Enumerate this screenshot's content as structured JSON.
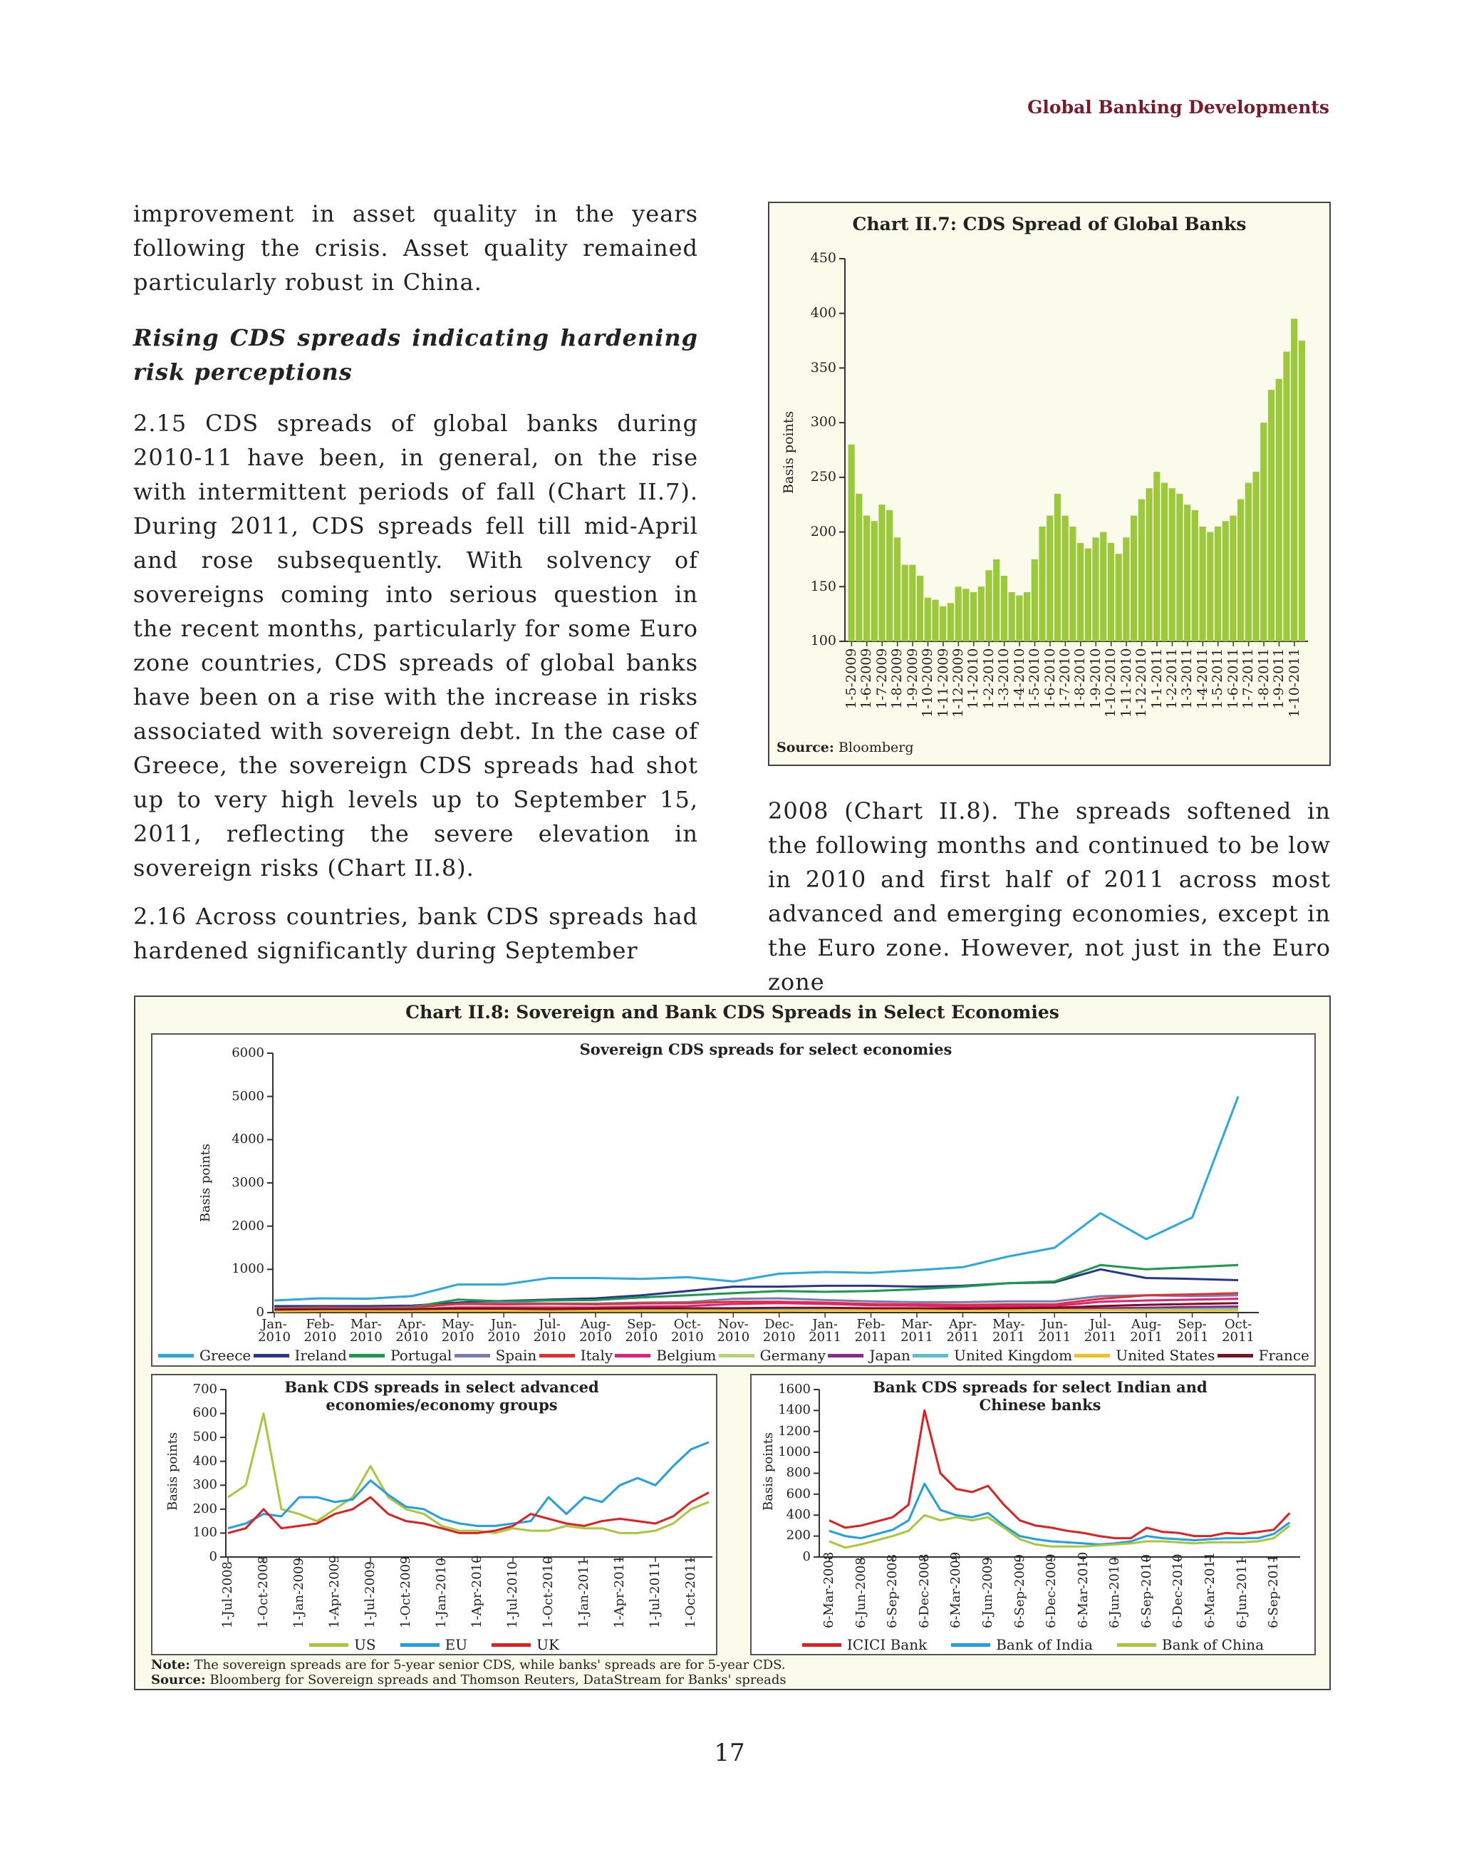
{
  "header": {
    "running_title": "Global Banking Developments"
  },
  "left_column": {
    "intro": "improvement in asset quality in the years following the crisis. Asset quality remained particularly robust in China.",
    "heading": "Rising CDS spreads indicating hardening risk perceptions",
    "paragraphs": [
      "2.15 CDS spreads of global banks during 2010-11 have been, in general, on the rise with intermittent periods of fall (Chart II.7). During 2011, CDS spreads fell till mid-April and rose subsequently. With solvency of sovereigns coming into serious question in the recent months, particularly for some Euro zone countries, CDS spreads of global banks have been on a rise with the increase in risks associated with sovereign debt. In the case of Greece, the sovereign CDS spreads had shot up to very high levels up to September 15, 2011, reflecting the severe elevation in sovereign risks (Chart II.8).",
      "2.16 Across countries, bank CDS spreads had hardened significantly during September"
    ]
  },
  "right_column": {
    "text": "2008 (Chart II.8). The spreads softened in the following months and continued to be low in 2010 and first half of 2011 across most advanced and emerging economies, except in the Euro zone. However, not just in the Euro zone"
  },
  "figure_ii8": {
    "title": "Chart II.8: Sovereign and Bank CDS Spreads in Select Economies",
    "note_label": "Note:",
    "note": "The sovereign spreads are for 5-year senior CDS, while banks' spreads are for 5-year CDS.",
    "source_label": "Source:",
    "source": "Bloomberg for Sovereign spreads and Thomson Reuters, DataStream for Banks' spreads"
  },
  "page_number": "17",
  "chart_data": [
    {
      "type": "bar",
      "title": "Chart II.7: CDS Spread of Global Banks",
      "y_label": "Basis points",
      "source_label": "Source:",
      "source": "Bloomberg",
      "color": "#9cc83c",
      "categories": [
        "1-5-2009",
        null,
        "1-6-2009",
        null,
        "1-7-2009",
        null,
        "1-8-2009",
        null,
        "1-9-2009",
        null,
        "1-10-2009",
        null,
        "1-11-2009",
        null,
        "1-12-2009",
        null,
        "1-1-2010",
        null,
        "1-2-2010",
        null,
        "1-3-2010",
        null,
        "1-4-2010",
        null,
        "1-5-2010",
        null,
        "1-6-2010",
        null,
        "1-7-2010",
        null,
        "1-8-2010",
        null,
        "1-9-2010",
        null,
        "1-10-2010",
        null,
        "1-11-2010",
        null,
        "1-12-2010",
        null,
        "1-1-2011",
        null,
        "1-2-2011",
        null,
        "1-3-2011",
        null,
        "1-4-2011",
        null,
        "1-5-2011",
        null,
        "1-6-2011",
        null,
        "1-7-2011",
        null,
        "1-8-2011",
        null,
        "1-9-2011",
        null,
        "1-10-2011",
        null
      ],
      "values": [
        280,
        235,
        215,
        210,
        225,
        220,
        195,
        170,
        170,
        160,
        140,
        138,
        132,
        135,
        150,
        148,
        145,
        150,
        165,
        175,
        160,
        145,
        142,
        145,
        175,
        205,
        215,
        235,
        215,
        205,
        190,
        185,
        195,
        200,
        190,
        180,
        195,
        215,
        230,
        240,
        255,
        245,
        240,
        235,
        225,
        220,
        205,
        200,
        205,
        210,
        215,
        230,
        245,
        255,
        300,
        330,
        340,
        365,
        395,
        375
      ],
      "ylim": [
        100,
        450
      ],
      "yticks": [
        100,
        150,
        200,
        250,
        300,
        350,
        400,
        450
      ]
    },
    {
      "type": "line",
      "subtitle": "Sovereign CDS spreads for select economies",
      "y_label": "Basis points",
      "categories": [
        "Jan-2010",
        "Feb-2010",
        "Mar-2010",
        "Apr-2010",
        "May-2010",
        "Jun-2010",
        "Jul-2010",
        "Aug-2010",
        "Sep-2010",
        "Oct-2010",
        "Nov-2010",
        "Dec-2010",
        "Jan-2011",
        "Feb-2011",
        "Mar-2011",
        "Apr-2011",
        "May-2011",
        "Jun-2011",
        "Jul-2011",
        "Aug-2011",
        "Sep-2011",
        "Oct-2011"
      ],
      "ylim": [
        0,
        6000
      ],
      "yticks": [
        0,
        1000,
        2000,
        3000,
        4000,
        5000,
        6000
      ],
      "legend": "bottom",
      "series": [
        {
          "name": "Greece",
          "color": "#29a9e0",
          "values": [
            280,
            330,
            320,
            380,
            650,
            650,
            800,
            800,
            780,
            820,
            720,
            900,
            940,
            920,
            980,
            1050,
            1300,
            1500,
            2300,
            1700,
            2200,
            5000
          ]
        },
        {
          "name": "Ireland",
          "color": "#2a3590",
          "values": [
            150,
            150,
            150,
            160,
            230,
            270,
            300,
            330,
            400,
            500,
            600,
            600,
            620,
            620,
            600,
            620,
            680,
            700,
            1000,
            800,
            780,
            750
          ]
        },
        {
          "name": "Portugal",
          "color": "#1a9a4a",
          "values": [
            100,
            120,
            100,
            130,
            300,
            260,
            280,
            290,
            350,
            400,
            450,
            500,
            480,
            500,
            540,
            600,
            680,
            720,
            1100,
            1000,
            1050,
            1100
          ]
        },
        {
          "name": "Spain",
          "color": "#7a7ab8",
          "values": [
            90,
            100,
            110,
            130,
            200,
            230,
            210,
            210,
            230,
            240,
            320,
            330,
            290,
            260,
            240,
            240,
            260,
            260,
            380,
            400,
            380,
            400
          ]
        },
        {
          "name": "Italy",
          "color": "#e03030",
          "values": [
            100,
            120,
            110,
            120,
            200,
            190,
            200,
            190,
            210,
            220,
            250,
            250,
            230,
            200,
            190,
            180,
            190,
            190,
            320,
            400,
            420,
            450
          ]
        },
        {
          "name": "Belgium",
          "color": "#e0207a",
          "values": [
            50,
            60,
            60,
            80,
            120,
            120,
            120,
            120,
            140,
            150,
            200,
            220,
            200,
            170,
            160,
            140,
            150,
            150,
            250,
            280,
            300,
            320
          ]
        },
        {
          "name": "Germany",
          "color": "#b8d078",
          "values": [
            30,
            40,
            40,
            40,
            50,
            40,
            40,
            40,
            40,
            40,
            50,
            50,
            50,
            50,
            50,
            50,
            50,
            50,
            60,
            80,
            100,
            110
          ]
        },
        {
          "name": "Japan",
          "color": "#8a2a8a",
          "values": [
            70,
            70,
            70,
            80,
            90,
            90,
            80,
            80,
            80,
            80,
            80,
            80,
            80,
            80,
            90,
            100,
            100,
            100,
            100,
            110,
            130,
            140
          ]
        },
        {
          "name": "United Kingdom",
          "color": "#5ac0d0",
          "values": [
            80,
            90,
            90,
            90,
            90,
            90,
            80,
            80,
            70,
            70,
            70,
            80,
            70,
            70,
            70,
            70,
            60,
            60,
            60,
            70,
            80,
            90
          ]
        },
        {
          "name": "United States",
          "color": "#f0c020",
          "values": [
            30,
            40,
            40,
            40,
            40,
            40,
            40,
            40,
            40,
            40,
            40,
            40,
            50,
            50,
            50,
            50,
            50,
            50,
            60,
            50,
            50,
            50
          ]
        },
        {
          "name": "France",
          "color": "#7a1020",
          "values": [
            70,
            80,
            80,
            80,
            90,
            90,
            80,
            90,
            100,
            100,
            100,
            110,
            110,
            100,
            100,
            90,
            100,
            110,
            150,
            180,
            200,
            220
          ]
        }
      ]
    },
    {
      "type": "line",
      "subtitle": "Bank CDS spreads in select advanced economies/economy groups",
      "y_label": "Basis points",
      "categories": [
        "1-Jul-2008",
        null,
        "1-Oct-2008",
        null,
        "1-Jan-2009",
        null,
        "1-Apr-2009",
        null,
        "1-Jul-2009",
        null,
        "1-Oct-2009",
        null,
        "1-Jan-2010",
        null,
        "1-Apr-2010",
        null,
        "1-Jul-2010",
        null,
        "1-Oct-2010",
        null,
        "1-Jan-2011",
        null,
        "1-Apr-2011",
        null,
        "1-Jul-2011",
        null,
        "1-Oct-2011",
        null
      ],
      "ylim": [
        0,
        700
      ],
      "yticks": [
        0,
        100,
        200,
        300,
        400,
        500,
        600,
        700
      ],
      "legend": "bottom",
      "series": [
        {
          "name": "US",
          "color": "#a8c83a",
          "values": [
            250,
            300,
            600,
            200,
            180,
            150,
            200,
            250,
            380,
            250,
            200,
            180,
            130,
            110,
            110,
            100,
            120,
            110,
            110,
            130,
            120,
            120,
            100,
            100,
            110,
            140,
            200,
            230
          ]
        },
        {
          "name": "EU",
          "color": "#20a0e0",
          "values": [
            120,
            140,
            180,
            170,
            250,
            250,
            230,
            240,
            320,
            260,
            210,
            200,
            160,
            140,
            130,
            130,
            140,
            150,
            250,
            180,
            250,
            230,
            300,
            330,
            300,
            380,
            450,
            480
          ]
        },
        {
          "name": "UK",
          "color": "#e02020",
          "values": [
            100,
            120,
            200,
            120,
            130,
            140,
            180,
            200,
            250,
            180,
            150,
            140,
            120,
            100,
            100,
            110,
            130,
            180,
            160,
            140,
            130,
            150,
            160,
            150,
            140,
            170,
            230,
            270
          ]
        }
      ]
    },
    {
      "type": "line",
      "subtitle": "Bank CDS spreads for select Indian and Chinese banks",
      "y_label": "Basis points",
      "categories": [
        "6-Mar-2008",
        null,
        "6-Jun-2008",
        null,
        "6-Sep-2008",
        null,
        "6-Dec-2008",
        null,
        "6-Mar-2009",
        null,
        "6-Jun-2009",
        null,
        "6-Sep-2009",
        null,
        "6-Dec-2009",
        null,
        "6-Mar-2010",
        null,
        "6-Jun-2010",
        null,
        "6-Sep-2010",
        null,
        "6-Dec-2010",
        null,
        "6-Mar-2011",
        null,
        "6-Jun-2011",
        null,
        "6-Sep-2011",
        null
      ],
      "ylim": [
        0,
        1600
      ],
      "yticks": [
        0,
        200,
        400,
        600,
        800,
        1000,
        1200,
        1400,
        1600
      ],
      "legend": "bottom",
      "series": [
        {
          "name": "ICICI Bank",
          "color": "#e02020",
          "values": [
            350,
            280,
            300,
            340,
            380,
            500,
            1400,
            800,
            650,
            620,
            680,
            500,
            350,
            300,
            280,
            250,
            230,
            200,
            180,
            180,
            280,
            240,
            230,
            200,
            200,
            230,
            220,
            240,
            260,
            420
          ]
        },
        {
          "name": "Bank of India",
          "color": "#20a0e0",
          "values": [
            250,
            200,
            180,
            220,
            260,
            350,
            700,
            450,
            400,
            380,
            420,
            300,
            200,
            170,
            150,
            140,
            130,
            120,
            130,
            150,
            200,
            180,
            170,
            160,
            170,
            180,
            180,
            180,
            220,
            330
          ]
        },
        {
          "name": "Bank of China",
          "color": "#a8c83a",
          "values": [
            150,
            90,
            120,
            160,
            200,
            250,
            400,
            350,
            380,
            350,
            380,
            280,
            170,
            120,
            100,
            100,
            100,
            110,
            120,
            130,
            150,
            150,
            140,
            130,
            140,
            140,
            140,
            150,
            180,
            300
          ]
        }
      ]
    }
  ]
}
